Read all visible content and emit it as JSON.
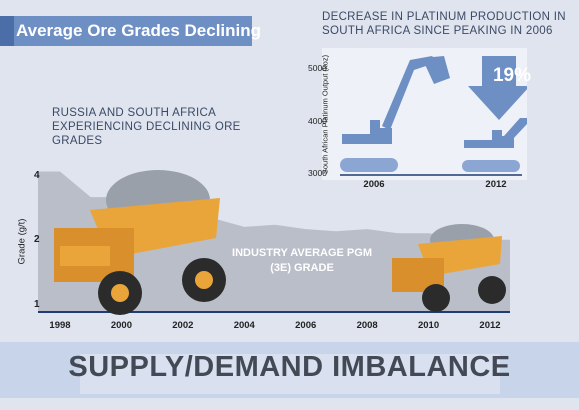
{
  "banner_title": "Average Ore Grades Declining",
  "subtitle_left": "RUSSIA AND SOUTH AFRICA EXPERIENCING DECLINING ORE GRADES",
  "right_title": "DECREASE IN PLATINUM PRODUCTION IN SOUTH AFRICA SINCE PEAKING IN 2006",
  "industry_label": "INDUSTRY AVERAGE PGM (3E) GRADE",
  "pct_label": "19%",
  "bottom_title": "SUPPLY/DEMAND IMBALANCE",
  "colors": {
    "banner": "#6e8fc4",
    "area": "#b9bec9",
    "panel": "#eef1f7",
    "blue_shape": "#6e8fc4",
    "truck": "#e9a43a",
    "line": "#1f3c74"
  },
  "chart_data": [
    {
      "type": "area",
      "title": "",
      "xlabel": "",
      "ylabel": "Grade (g/t)",
      "x": [
        1998,
        1999,
        2000,
        2001,
        2002,
        2003,
        2004,
        2005,
        2006,
        2007,
        2008,
        2009,
        2010,
        2011,
        2012
      ],
      "values": [
        4.2,
        3.6,
        3.6,
        3.3,
        3.3,
        3.1,
        2.9,
        2.95,
        2.85,
        2.8,
        2.85,
        2.75,
        2.75,
        2.65,
        2.6
      ],
      "x_ticks": [
        "1998",
        "2000",
        "2002",
        "2004",
        "2006",
        "2008",
        "2010",
        "2012"
      ],
      "y_ticks": [
        "1",
        "2",
        "4"
      ],
      "ylim": [
        1,
        4
      ],
      "grid": false
    },
    {
      "type": "bar",
      "title": "DECREASE IN PLATINUM PRODUCTION IN SOUTH AFRICA SINCE PEAKING IN 2006",
      "ylabel": "South African Platinum Output (koz)",
      "categories": [
        "2006",
        "2012"
      ],
      "values": [
        5300,
        4300
      ],
      "y_ticks": [
        "3000",
        "4000",
        "5000"
      ],
      "ylim": [
        3000,
        5400
      ],
      "annotation": "19%",
      "grid": false
    }
  ]
}
